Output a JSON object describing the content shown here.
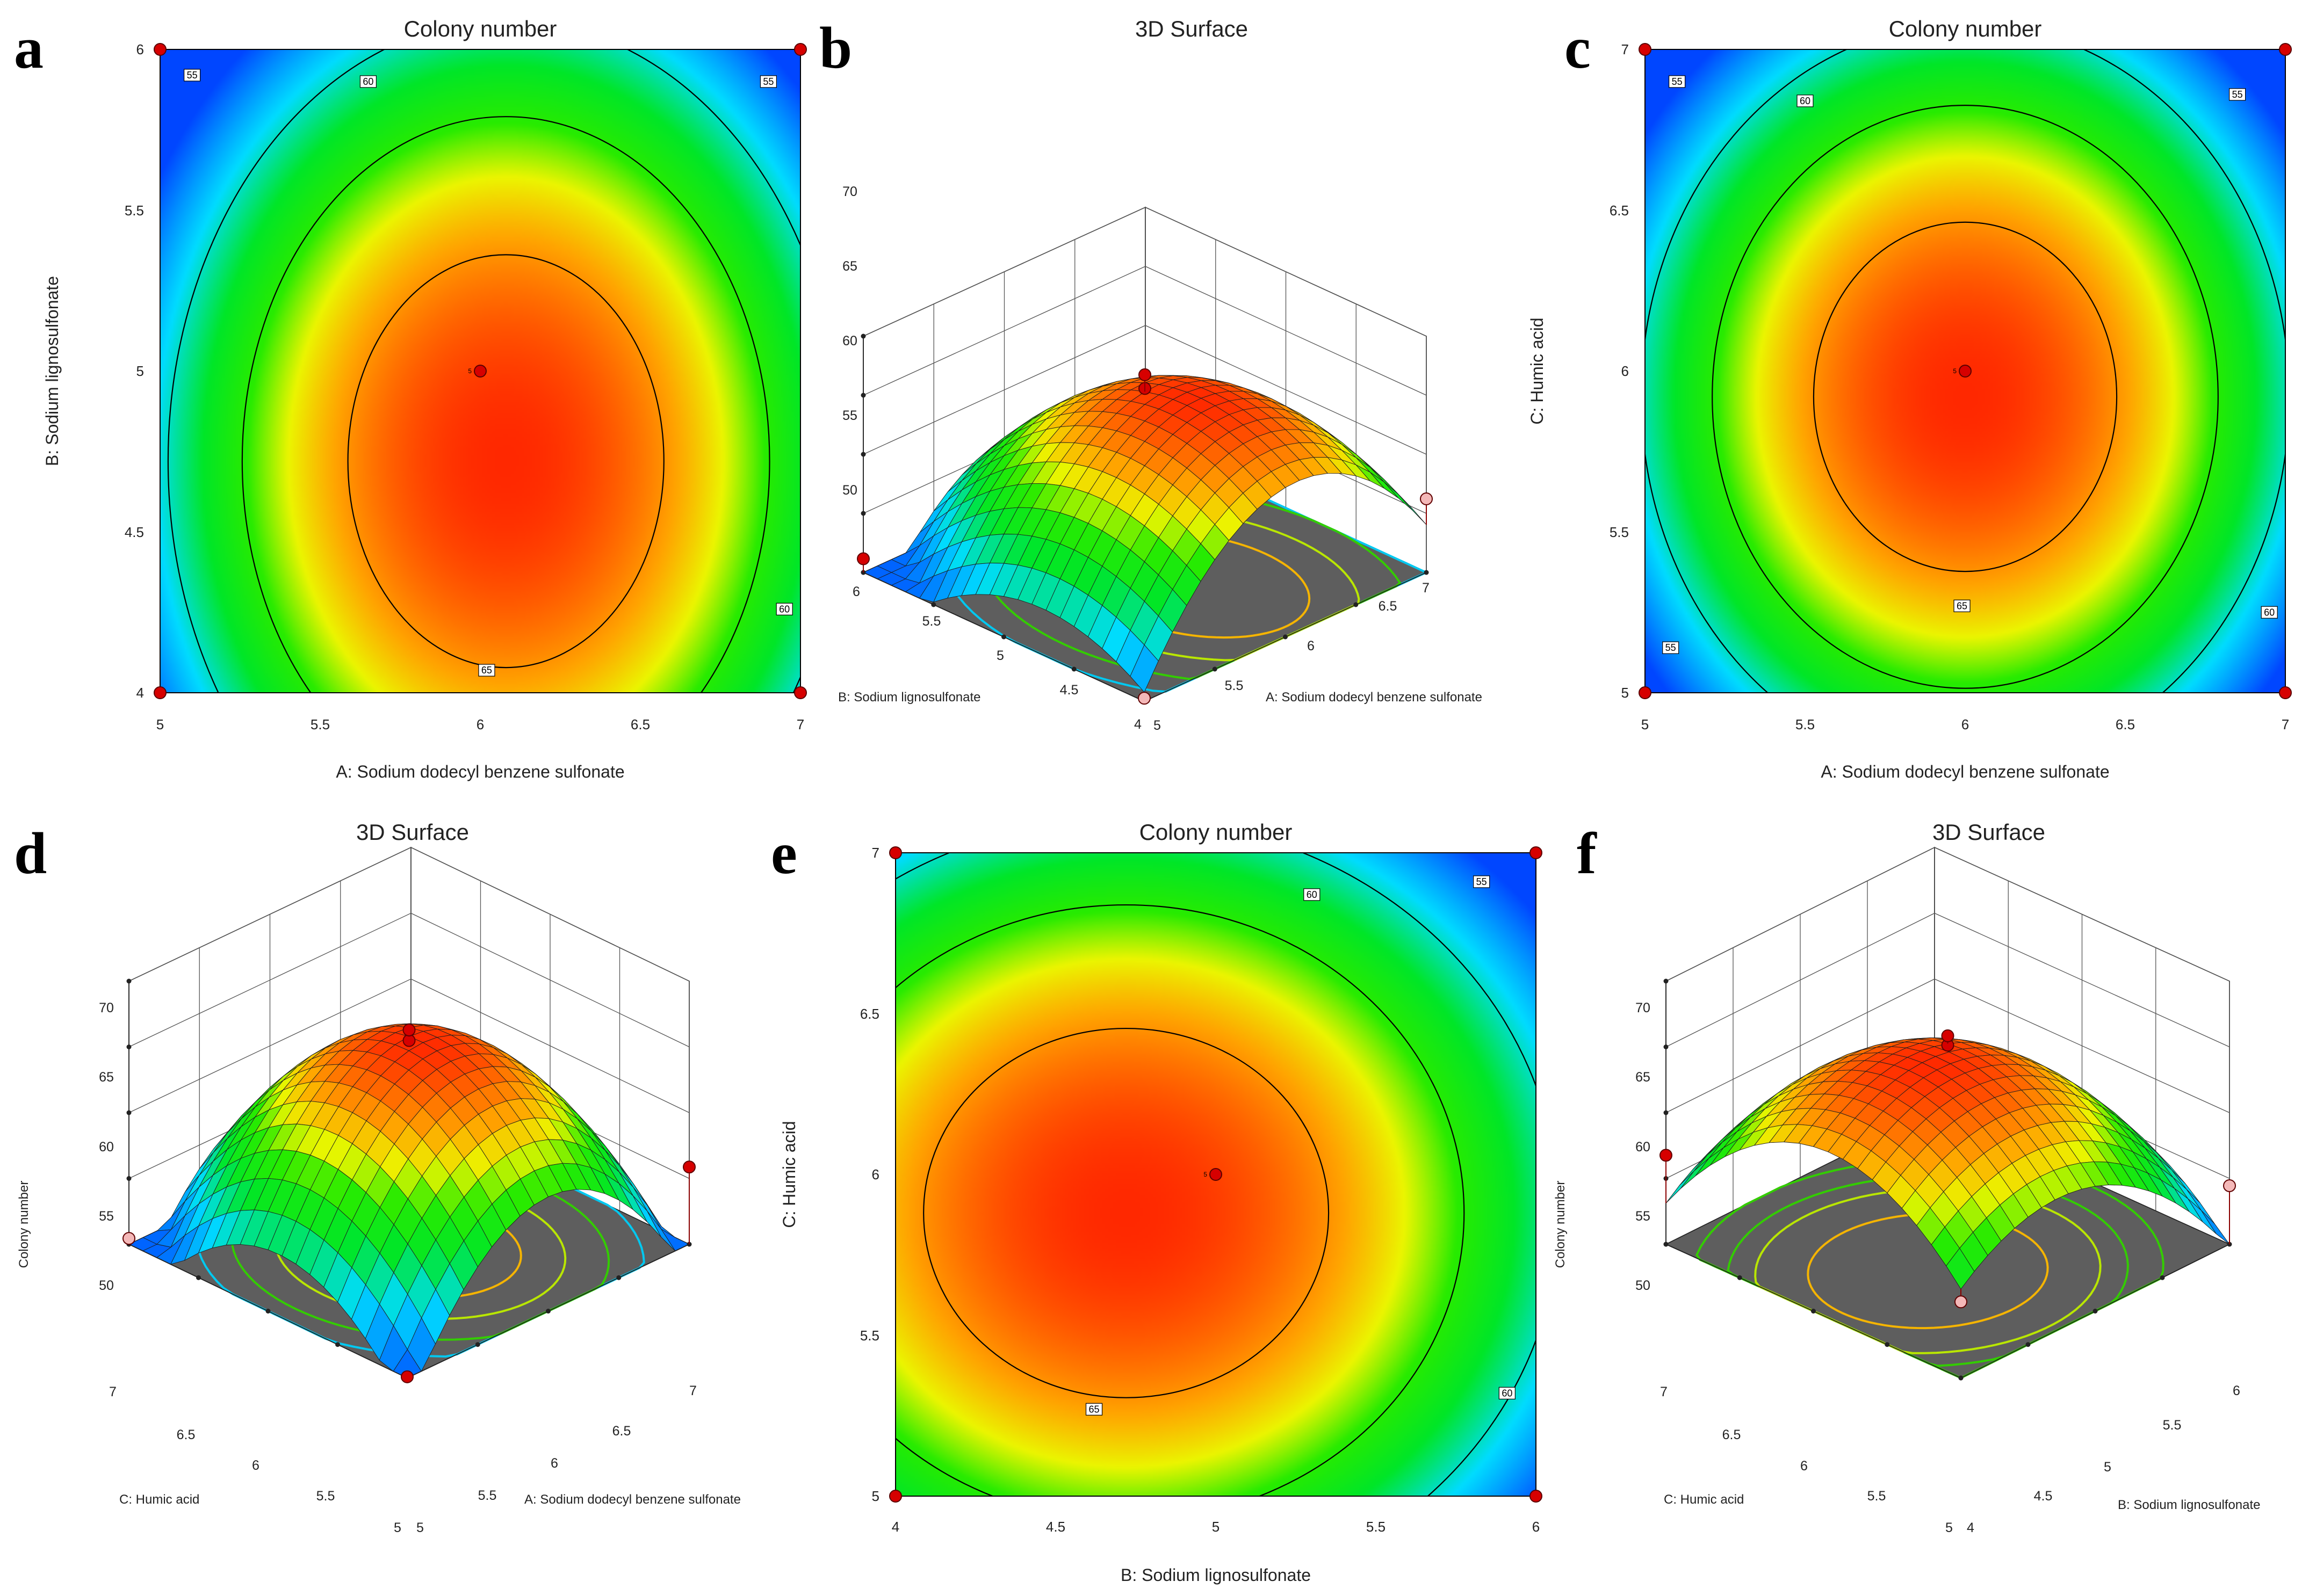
{
  "figure": {
    "panel_letters": [
      "a",
      "b",
      "c",
      "d",
      "e",
      "f"
    ]
  },
  "chart_data": [
    {
      "panel": "a",
      "type": "heatmap",
      "title": "Colony number",
      "xlabel": "A: Sodium dodecyl benzene sulfonate",
      "ylabel": "B: Sodium lignosulfonate",
      "xlim": [
        5,
        7
      ],
      "ylim": [
        4,
        6
      ],
      "xticks": [
        "5",
        "5.5",
        "6",
        "6.5",
        "7"
      ],
      "yticks": [
        "4",
        "4.5",
        "5",
        "5.5",
        "6"
      ],
      "model": {
        "center": [
          6.08,
          4.72
        ],
        "peak": 67.8,
        "ka": 11.5,
        "kb": 6.8
      },
      "contour_levels": [
        55,
        60,
        65
      ],
      "contour_labels": [
        {
          "text": "55",
          "x": 5.1,
          "y": 5.92
        },
        {
          "text": "60",
          "x": 5.65,
          "y": 5.9
        },
        {
          "text": "55",
          "x": 6.9,
          "y": 5.9
        },
        {
          "text": "60",
          "x": 6.95,
          "y": 4.26
        },
        {
          "text": "65",
          "x": 6.02,
          "y": 4.07
        }
      ],
      "design_points": [
        {
          "x": 5,
          "y": 6
        },
        {
          "x": 7,
          "y": 6
        },
        {
          "x": 5,
          "y": 4
        },
        {
          "x": 7,
          "y": 4
        },
        {
          "x": 6,
          "y": 5,
          "label": "5"
        }
      ]
    },
    {
      "panel": "b",
      "type": "surface3d",
      "title": "3D Surface",
      "xlabel": "A: Sodium dodecyl benzene sulfonate",
      "ylabel": "B: Sodium lignosulfonate",
      "xrange": [
        5,
        7
      ],
      "yrange": [
        4,
        6
      ],
      "zrange": [
        50,
        70
      ],
      "xticks": [
        "5",
        "5.5",
        "6",
        "6.5",
        "7"
      ],
      "yticks": [
        "4",
        "4.5",
        "5",
        "5.5",
        "6"
      ],
      "zticks": [
        "50",
        "55",
        "60",
        "65",
        "70"
      ],
      "model": {
        "center": [
          6.08,
          4.72
        ],
        "peak": 67.8,
        "ka": 11.5,
        "kb": 6.8
      },
      "floor_contours": [
        54,
        58,
        62,
        65
      ],
      "design_points": [
        {
          "x": 6,
          "y": 5,
          "z": 67.5,
          "above": true
        },
        {
          "x": 6,
          "y": 5,
          "z": 68.8,
          "above": true
        },
        {
          "x": 5,
          "y": 6,
          "z": 51.3,
          "above": true
        },
        {
          "x": 7,
          "y": 4,
          "z": 57.0,
          "above": false
        },
        {
          "x": 5,
          "y": 4,
          "z": 50.3,
          "above": false
        }
      ]
    },
    {
      "panel": "c",
      "type": "heatmap",
      "title": "Colony number",
      "xlabel": "A: Sodium dodecyl benzene sulfonate",
      "ylabel": "C: Humic acid",
      "xlim": [
        5,
        7
      ],
      "ylim": [
        5,
        7
      ],
      "xticks": [
        "5",
        "5.5",
        "6",
        "6.5",
        "7"
      ],
      "yticks": [
        "5",
        "5.5",
        "6",
        "6.5",
        "7"
      ],
      "model": {
        "center": [
          6.0,
          5.92
        ],
        "peak": 67.8,
        "ka": 12.5,
        "kb": 9.5
      },
      "contour_levels": [
        55,
        60,
        65
      ],
      "contour_labels": [
        {
          "text": "55",
          "x": 5.1,
          "y": 6.9
        },
        {
          "text": "60",
          "x": 5.5,
          "y": 6.84
        },
        {
          "text": "55",
          "x": 6.85,
          "y": 6.86
        },
        {
          "text": "60",
          "x": 6.95,
          "y": 5.25
        },
        {
          "text": "55",
          "x": 5.08,
          "y": 5.14
        },
        {
          "text": "65",
          "x": 5.99,
          "y": 5.27
        }
      ],
      "design_points": [
        {
          "x": 5,
          "y": 7
        },
        {
          "x": 7,
          "y": 7
        },
        {
          "x": 5,
          "y": 5
        },
        {
          "x": 7,
          "y": 5
        },
        {
          "x": 6,
          "y": 6,
          "label": "5"
        }
      ]
    },
    {
      "panel": "d",
      "type": "surface3d",
      "title": "3D Surface",
      "zlabel": "Colony number",
      "xlabel": "A: Sodium dodecyl benzene sulfonate",
      "ylabel": "C: Humic acid",
      "xrange": [
        5,
        7
      ],
      "yrange": [
        5,
        7
      ],
      "zrange": [
        50,
        70
      ],
      "xticks": [
        "5",
        "5.5",
        "6",
        "6.5",
        "7"
      ],
      "yticks": [
        "5",
        "5.5",
        "6",
        "6.5",
        "7"
      ],
      "zticks": [
        "50",
        "55",
        "60",
        "65",
        "70"
      ],
      "model": {
        "center": [
          6.0,
          5.92
        ],
        "peak": 67.8,
        "ka": 12.5,
        "kb": 9.5
      },
      "floor_contours": [
        54,
        58,
        62,
        65
      ],
      "design_points": [
        {
          "x": 6,
          "y": 6,
          "z": 67.4,
          "above": true
        },
        {
          "x": 6,
          "y": 6,
          "z": 68.3,
          "above": true
        },
        {
          "x": 7,
          "y": 5,
          "z": 56.6,
          "above": true
        },
        {
          "x": 5,
          "y": 7,
          "z": 50.5,
          "above": false
        },
        {
          "x": 5,
          "y": 5,
          "z": 50.1,
          "above": true
        }
      ]
    },
    {
      "panel": "e",
      "type": "heatmap",
      "title": "Colony number",
      "xlabel": "B: Sodium lignosulfonate",
      "ylabel": "C: Humic acid",
      "xlim": [
        4,
        6
      ],
      "ylim": [
        5,
        7
      ],
      "xticks": [
        "4",
        "4.5",
        "5",
        "5.5",
        "6"
      ],
      "yticks": [
        "5",
        "5.5",
        "6",
        "6.5",
        "7"
      ],
      "model": {
        "center": [
          4.72,
          5.88
        ],
        "peak": 67.8,
        "ka": 7.0,
        "kb": 8.5
      },
      "contour_levels": [
        55,
        60,
        65
      ],
      "contour_labels": [
        {
          "text": "60",
          "x": 5.3,
          "y": 6.87
        },
        {
          "text": "55",
          "x": 5.83,
          "y": 6.91
        },
        {
          "text": "60",
          "x": 5.91,
          "y": 5.32
        },
        {
          "text": "65",
          "x": 4.62,
          "y": 5.27
        }
      ],
      "design_points": [
        {
          "x": 4,
          "y": 7
        },
        {
          "x": 6,
          "y": 7
        },
        {
          "x": 4,
          "y": 5
        },
        {
          "x": 6,
          "y": 5
        },
        {
          "x": 5,
          "y": 6,
          "label": "5"
        }
      ]
    },
    {
      "panel": "f",
      "type": "surface3d",
      "title": "3D Surface",
      "zlabel": "Colony number",
      "xlabel": "B: Sodium lignosulfonate",
      "ylabel": "C: Humic acid",
      "xrange": [
        4,
        6
      ],
      "yrange": [
        5,
        7
      ],
      "zrange": [
        50,
        70
      ],
      "xticks": [
        "4",
        "4.5",
        "5",
        "5.5",
        "6"
      ],
      "yticks": [
        "5",
        "5.5",
        "6",
        "6.5",
        "7"
      ],
      "zticks": [
        "50",
        "55",
        "60",
        "65",
        "70"
      ],
      "model": {
        "center": [
          4.72,
          5.88
        ],
        "peak": 67.8,
        "ka": 7.0,
        "kb": 8.5
      },
      "floor_contours": [
        57,
        60,
        62,
        65
      ],
      "design_points": [
        {
          "x": 5,
          "y": 6,
          "z": 67.0,
          "above": true
        },
        {
          "x": 5,
          "y": 6,
          "z": 67.8,
          "above": true
        },
        {
          "x": 4,
          "y": 7,
          "z": 57.6,
          "above": true
        },
        {
          "x": 6,
          "y": 5,
          "z": 55.0,
          "above": false
        },
        {
          "x": 4,
          "y": 5,
          "z": 56.5,
          "above": false
        }
      ]
    }
  ]
}
